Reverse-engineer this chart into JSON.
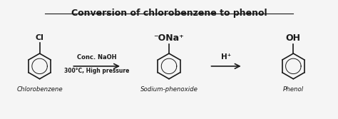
{
  "title": "Conversion of chlorobenzene to phenol",
  "bg_color": "#f0f0f0",
  "text_color": "#1a1a1a",
  "arrow_color": "#1a1a1a",
  "label_chlorobenzene": "Chlorobenzene",
  "label_sodium_phenoxide": "Sodium-phenoxide",
  "label_phenol": "Phenol",
  "label_cl": "Cl",
  "label_ona": "⁻ONa⁺",
  "label_oh": "OH",
  "arrow1_text1": "Conc. NaOH",
  "arrow1_text2": "300°C, High pressure",
  "arrow2_text": "H⁺",
  "benzene_color": "#1a1a1a",
  "figsize": [
    4.74,
    1.67
  ],
  "dpi": 100
}
